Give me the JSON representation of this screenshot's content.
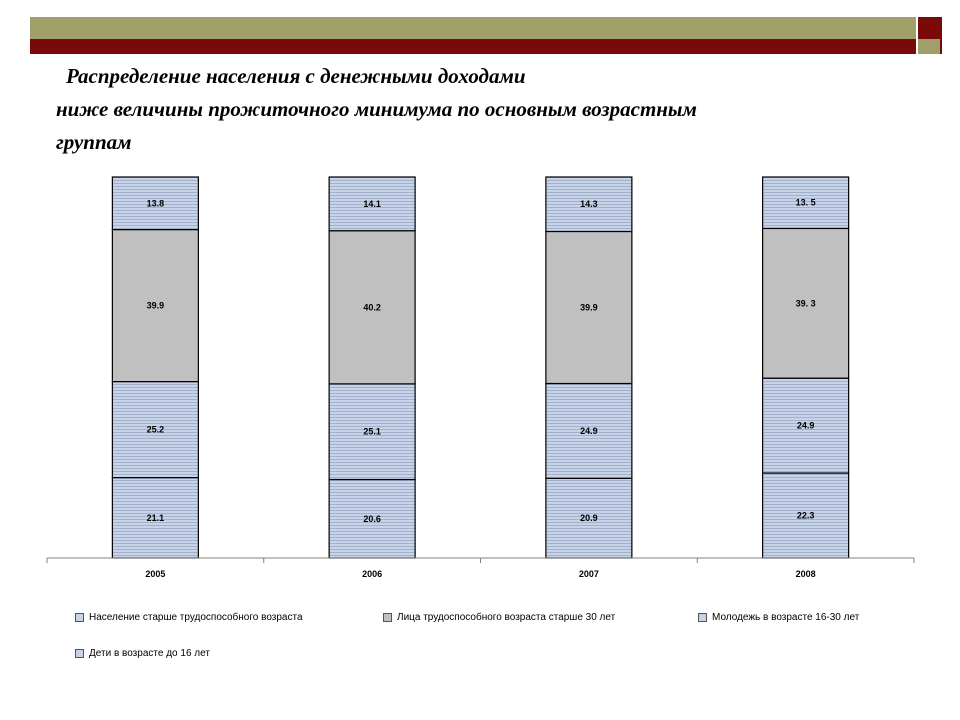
{
  "slide": {
    "title_line1": "Распределение населения с денежными доходами",
    "title_line2": "ниже величины прожиточного минимума по основным возрастным",
    "title_line3": "группам"
  },
  "colors": {
    "olive": "#a2a06a",
    "maroon": "#7a0a0a",
    "blue_hatch": "#c7d3e8",
    "hatch_line": "#9aa8c4",
    "gray": "#c0c0c0"
  },
  "chart_data": {
    "type": "bar",
    "stacked": true,
    "categories": [
      "2005",
      "2006",
      "2007",
      "2008"
    ],
    "series": [
      {
        "name": "Дети в возрасте до 16 лет",
        "values": [
          21.1,
          20.6,
          20.9,
          22.3
        ],
        "labels": [
          "21.1",
          "20.6",
          "20.9",
          "22.3"
        ],
        "fill": "hatch"
      },
      {
        "name": "Молодежь в возрасте 16-30 лет",
        "values": [
          25.2,
          25.1,
          24.9,
          24.9
        ],
        "labels": [
          "25.2",
          "25.1",
          "24.9",
          "24.9"
        ],
        "fill": "hatch"
      },
      {
        "name": "Лица трудоспособного возраста старше 30 лет",
        "values": [
          39.9,
          40.2,
          39.9,
          39.3
        ],
        "labels": [
          "39.9",
          "40.2",
          "39.9",
          "39. 3"
        ],
        "fill": "gray"
      },
      {
        "name": "Население старше трудоспособного возраста",
        "values": [
          13.8,
          14.1,
          14.3,
          13.5
        ],
        "labels": [
          "13.8",
          "14.1",
          "14.3",
          "13. 5"
        ],
        "fill": "hatch"
      }
    ],
    "legend_order": [
      3,
      2,
      1,
      0
    ],
    "legend_position": "bottom",
    "grid": false
  }
}
